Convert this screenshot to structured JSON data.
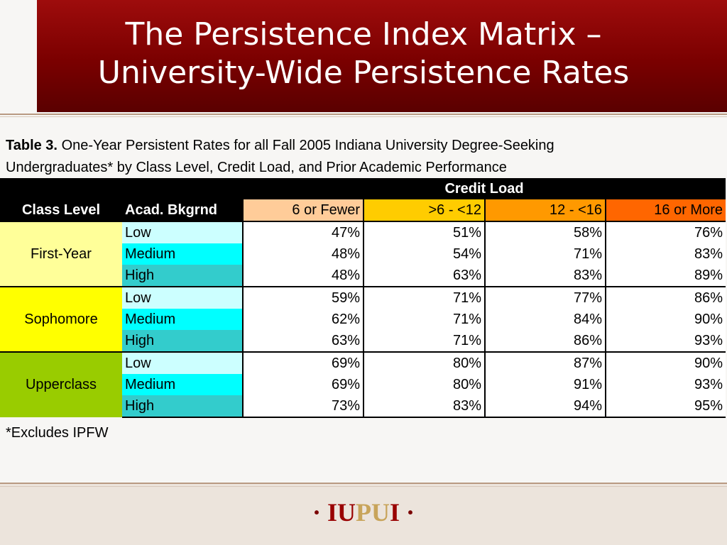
{
  "slide": {
    "title_line1": "The Persistence Index Matrix –",
    "title_line2": "University-Wide Persistence Rates"
  },
  "caption": {
    "label": "Table 3.",
    "text_line1": "One-Year Persistent Rates for all Fall 2005 Indiana University Degree-Seeking",
    "text_line2": "Undergraduates* by Class Level, Credit Load, and Prior Academic Performance"
  },
  "table": {
    "group_header": "Credit Load",
    "class_level_header": "Class Level",
    "acad_header": "Acad. Bkgrnd",
    "credit_columns": [
      "6 or Fewer",
      ">6 - <12",
      "12 - <16",
      "16 or More"
    ],
    "groups": [
      {
        "level": "First-Year",
        "rows": [
          {
            "acad": "Low",
            "values": [
              "47%",
              "51%",
              "58%",
              "76%"
            ]
          },
          {
            "acad": "Medium",
            "values": [
              "48%",
              "54%",
              "71%",
              "83%"
            ]
          },
          {
            "acad": "High",
            "values": [
              "48%",
              "63%",
              "83%",
              "89%"
            ]
          }
        ]
      },
      {
        "level": "Sophomore",
        "rows": [
          {
            "acad": "Low",
            "values": [
              "59%",
              "71%",
              "77%",
              "86%"
            ]
          },
          {
            "acad": "Medium",
            "values": [
              "62%",
              "71%",
              "84%",
              "90%"
            ]
          },
          {
            "acad": "High",
            "values": [
              "63%",
              "71%",
              "86%",
              "93%"
            ]
          }
        ]
      },
      {
        "level": "Upperclass",
        "rows": [
          {
            "acad": "Low",
            "values": [
              "69%",
              "80%",
              "87%",
              "90%"
            ]
          },
          {
            "acad": "Medium",
            "values": [
              "69%",
              "80%",
              "91%",
              "93%"
            ]
          },
          {
            "acad": "High",
            "values": [
              "73%",
              "83%",
              "94%",
              "95%"
            ]
          }
        ]
      }
    ]
  },
  "footnote": "*Excludes IPFW",
  "logo": {
    "dot_left": "·",
    "iu": "IU",
    "pu": "PU",
    "i": "I",
    "dot_right": "·"
  },
  "colors": {
    "header_maroon": "#7a0000",
    "first_year": "#ffff99",
    "sophomore": "#ffff00",
    "upperclass": "#99cc00",
    "acad_low": "#ccffff",
    "acad_medium": "#00ffff",
    "acad_high": "#33cccc",
    "credit_6_or_fewer": "#ffcc99",
    "credit_6_12": "#ffcc00",
    "credit_12_16": "#ff9900",
    "credit_16_more": "#ff6600"
  }
}
